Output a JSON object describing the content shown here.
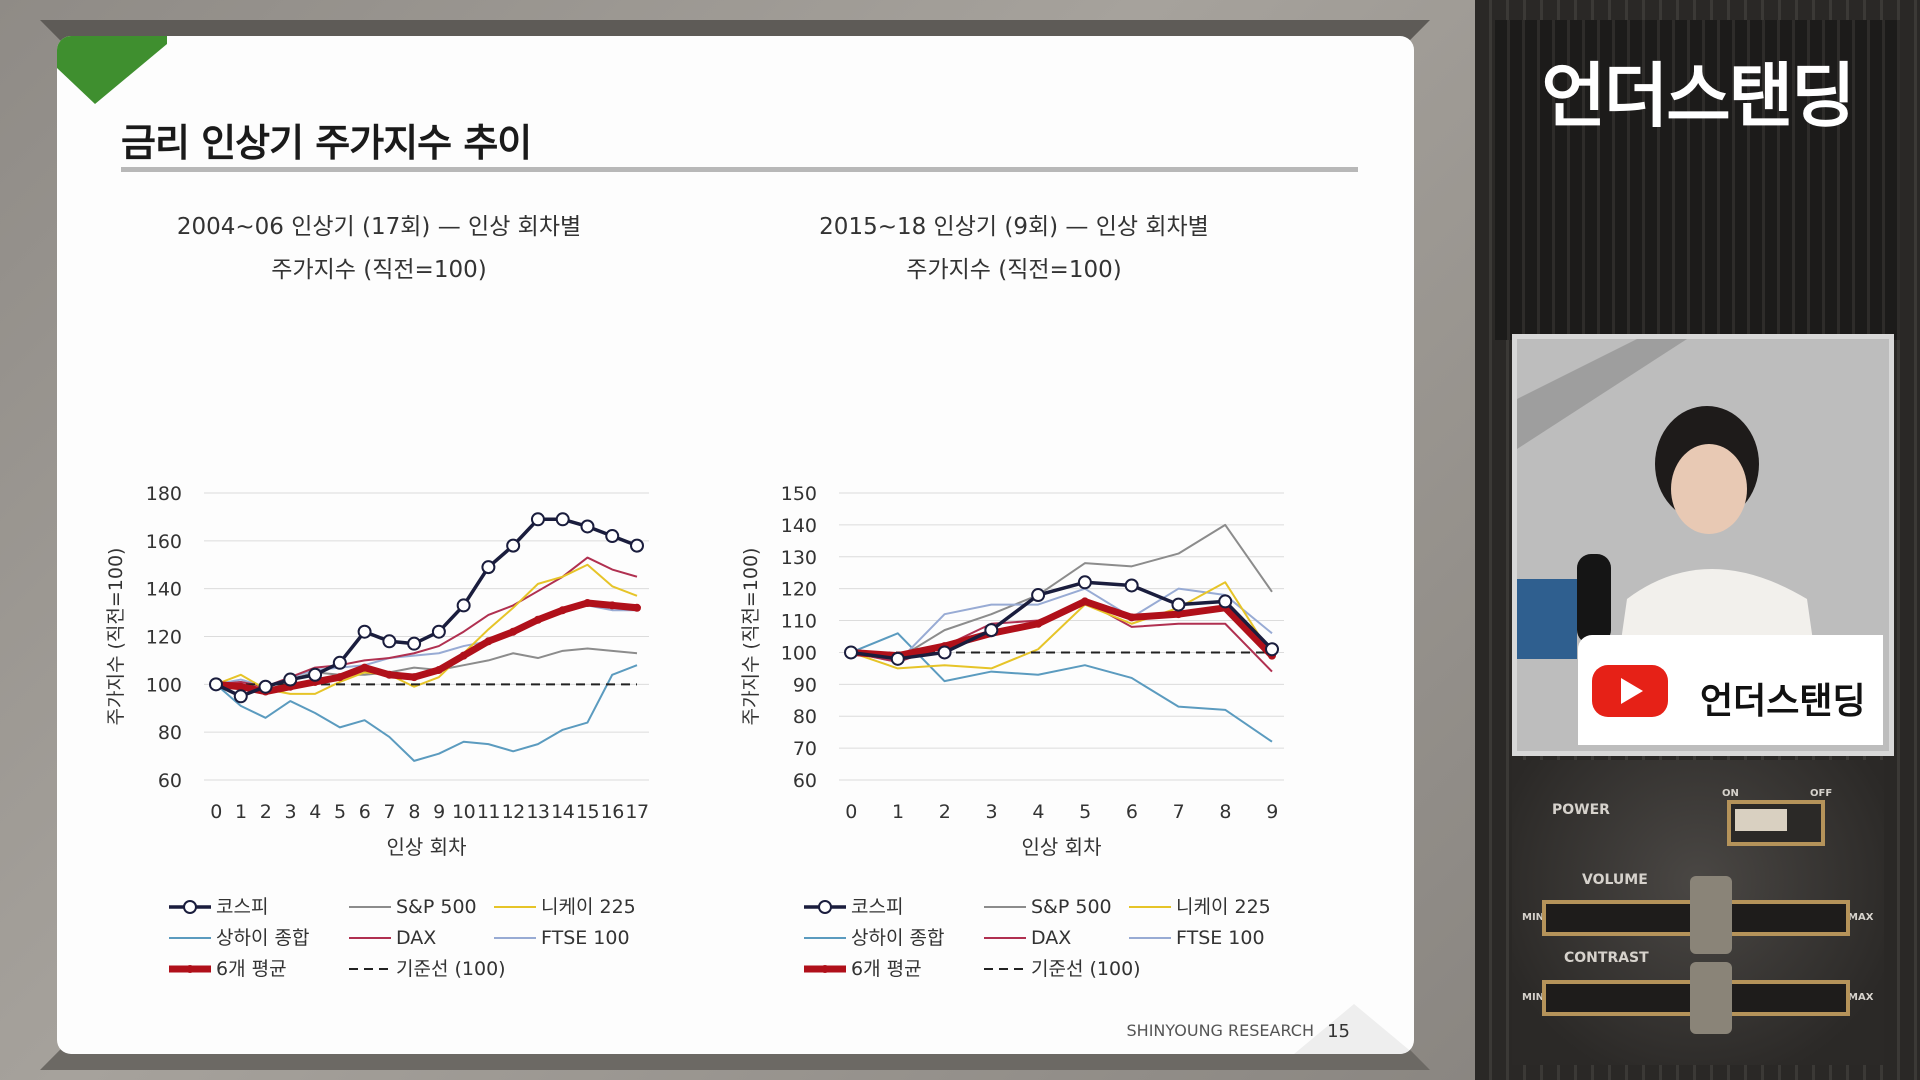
{
  "slide": {
    "title": "금리 인상기 주가지수 추이",
    "footer_brand": "SHINYOUNG RESEARCH",
    "page_number": "15"
  },
  "side": {
    "brand": "언더스탠딩",
    "youtube_label": "언더스탠딩",
    "console_labels": [
      "POWER",
      "ON",
      "OFF",
      "VOLUME",
      "MIN",
      "MAX",
      "CONTRAST",
      "MIN",
      "MAX"
    ]
  },
  "colors": {
    "kospi": "#1a1d3d",
    "sp500": "#8c8c8c",
    "nikkei": "#e6c428",
    "shanghai": "#5b9bbf",
    "dax": "#b03050",
    "ftse": "#98abd4",
    "avg": "#b0101a",
    "baseline": "#222222",
    "green": "#3f8f2f"
  },
  "chart_data": [
    {
      "type": "line",
      "title_line1": "2004~06 인상기 (17회) — 인상 회차별",
      "title_line2": "주가지수 (직전=100)",
      "xlabel": "인상 회차",
      "ylabel": "주가지수 (직전=100)",
      "ylim": [
        60,
        180
      ],
      "yticks": [
        60,
        80,
        100,
        120,
        140,
        160,
        180
      ],
      "x": [
        0,
        1,
        2,
        3,
        4,
        5,
        6,
        7,
        8,
        9,
        10,
        11,
        12,
        13,
        14,
        15,
        16,
        17
      ],
      "series": [
        {
          "key": "kospi",
          "name": "코스피",
          "values": [
            100,
            95,
            99,
            102,
            104,
            109,
            122,
            118,
            117,
            122,
            133,
            149,
            158,
            169,
            169,
            166,
            162,
            158
          ]
        },
        {
          "key": "sp500",
          "name": "S&P 500",
          "values": [
            100,
            101,
            99,
            102,
            105,
            104,
            104,
            105,
            107,
            106,
            108,
            110,
            113,
            111,
            114,
            115,
            114,
            113
          ]
        },
        {
          "key": "nikkei",
          "name": "니케이 225",
          "values": [
            100,
            104,
            98,
            96,
            96,
            101,
            105,
            104,
            99,
            103,
            113,
            123,
            132,
            142,
            145,
            150,
            141,
            137
          ]
        },
        {
          "key": "shanghai",
          "name": "상하이 종합",
          "values": [
            100,
            91,
            86,
            93,
            88,
            82,
            85,
            78,
            68,
            71,
            76,
            75,
            72,
            75,
            81,
            84,
            104,
            108
          ]
        },
        {
          "key": "dax",
          "name": "DAX",
          "values": [
            100,
            101,
            99,
            103,
            107,
            108,
            110,
            111,
            113,
            116,
            122,
            129,
            133,
            139,
            145,
            153,
            148,
            145
          ]
        },
        {
          "key": "ftse",
          "name": "FTSE 100",
          "values": [
            100,
            102,
            99,
            103,
            106,
            107,
            108,
            111,
            112,
            113,
            116,
            118,
            122,
            127,
            130,
            133,
            131,
            131
          ]
        },
        {
          "key": "avg",
          "name": "6개 평균",
          "values": [
            100,
            99,
            97,
            99,
            101,
            103,
            107,
            104,
            103,
            106,
            112,
            118,
            122,
            127,
            131,
            134,
            133,
            132
          ]
        },
        {
          "key": "baseline",
          "name": "기준선 (100)",
          "values": [
            100,
            100,
            100,
            100,
            100,
            100,
            100,
            100,
            100,
            100,
            100,
            100,
            100,
            100,
            100,
            100,
            100,
            100
          ]
        }
      ]
    },
    {
      "type": "line",
      "title_line1": "2015~18 인상기 (9회) — 인상 회차별",
      "title_line2": "주가지수 (직전=100)",
      "xlabel": "인상 회차",
      "ylabel": "주가지수 (직전=100)",
      "ylim": [
        60,
        150
      ],
      "yticks": [
        60,
        70,
        80,
        90,
        100,
        110,
        120,
        130,
        140,
        150
      ],
      "x": [
        0,
        1,
        2,
        3,
        4,
        5,
        6,
        7,
        8,
        9
      ],
      "series": [
        {
          "key": "kospi",
          "name": "코스피",
          "values": [
            100,
            98,
            100,
            107,
            118,
            122,
            121,
            115,
            116,
            101
          ]
        },
        {
          "key": "sp500",
          "name": "S&P 500",
          "values": [
            100,
            98,
            107,
            112,
            118,
            128,
            127,
            131,
            140,
            119
          ]
        },
        {
          "key": "nikkei",
          "name": "니케이 225",
          "values": [
            100,
            95,
            96,
            95,
            101,
            115,
            109,
            114,
            122,
            99
          ]
        },
        {
          "key": "shanghai",
          "name": "상하이 종합",
          "values": [
            100,
            106,
            91,
            94,
            93,
            96,
            92,
            83,
            82,
            72
          ]
        },
        {
          "key": "dax",
          "name": "DAX",
          "values": [
            100,
            97,
            102,
            109,
            110,
            116,
            108,
            109,
            109,
            94
          ]
        },
        {
          "key": "ftse",
          "name": "FTSE 100",
          "values": [
            100,
            97,
            112,
            115,
            115,
            120,
            111,
            120,
            118,
            106
          ]
        },
        {
          "key": "avg",
          "name": "6개 평균",
          "values": [
            100,
            99,
            102,
            106,
            109,
            116,
            111,
            112,
            114,
            99
          ]
        },
        {
          "key": "baseline",
          "name": "기준선 (100)",
          "values": [
            100,
            100,
            100,
            100,
            100,
            100,
            100,
            100,
            100,
            100
          ]
        }
      ]
    }
  ]
}
